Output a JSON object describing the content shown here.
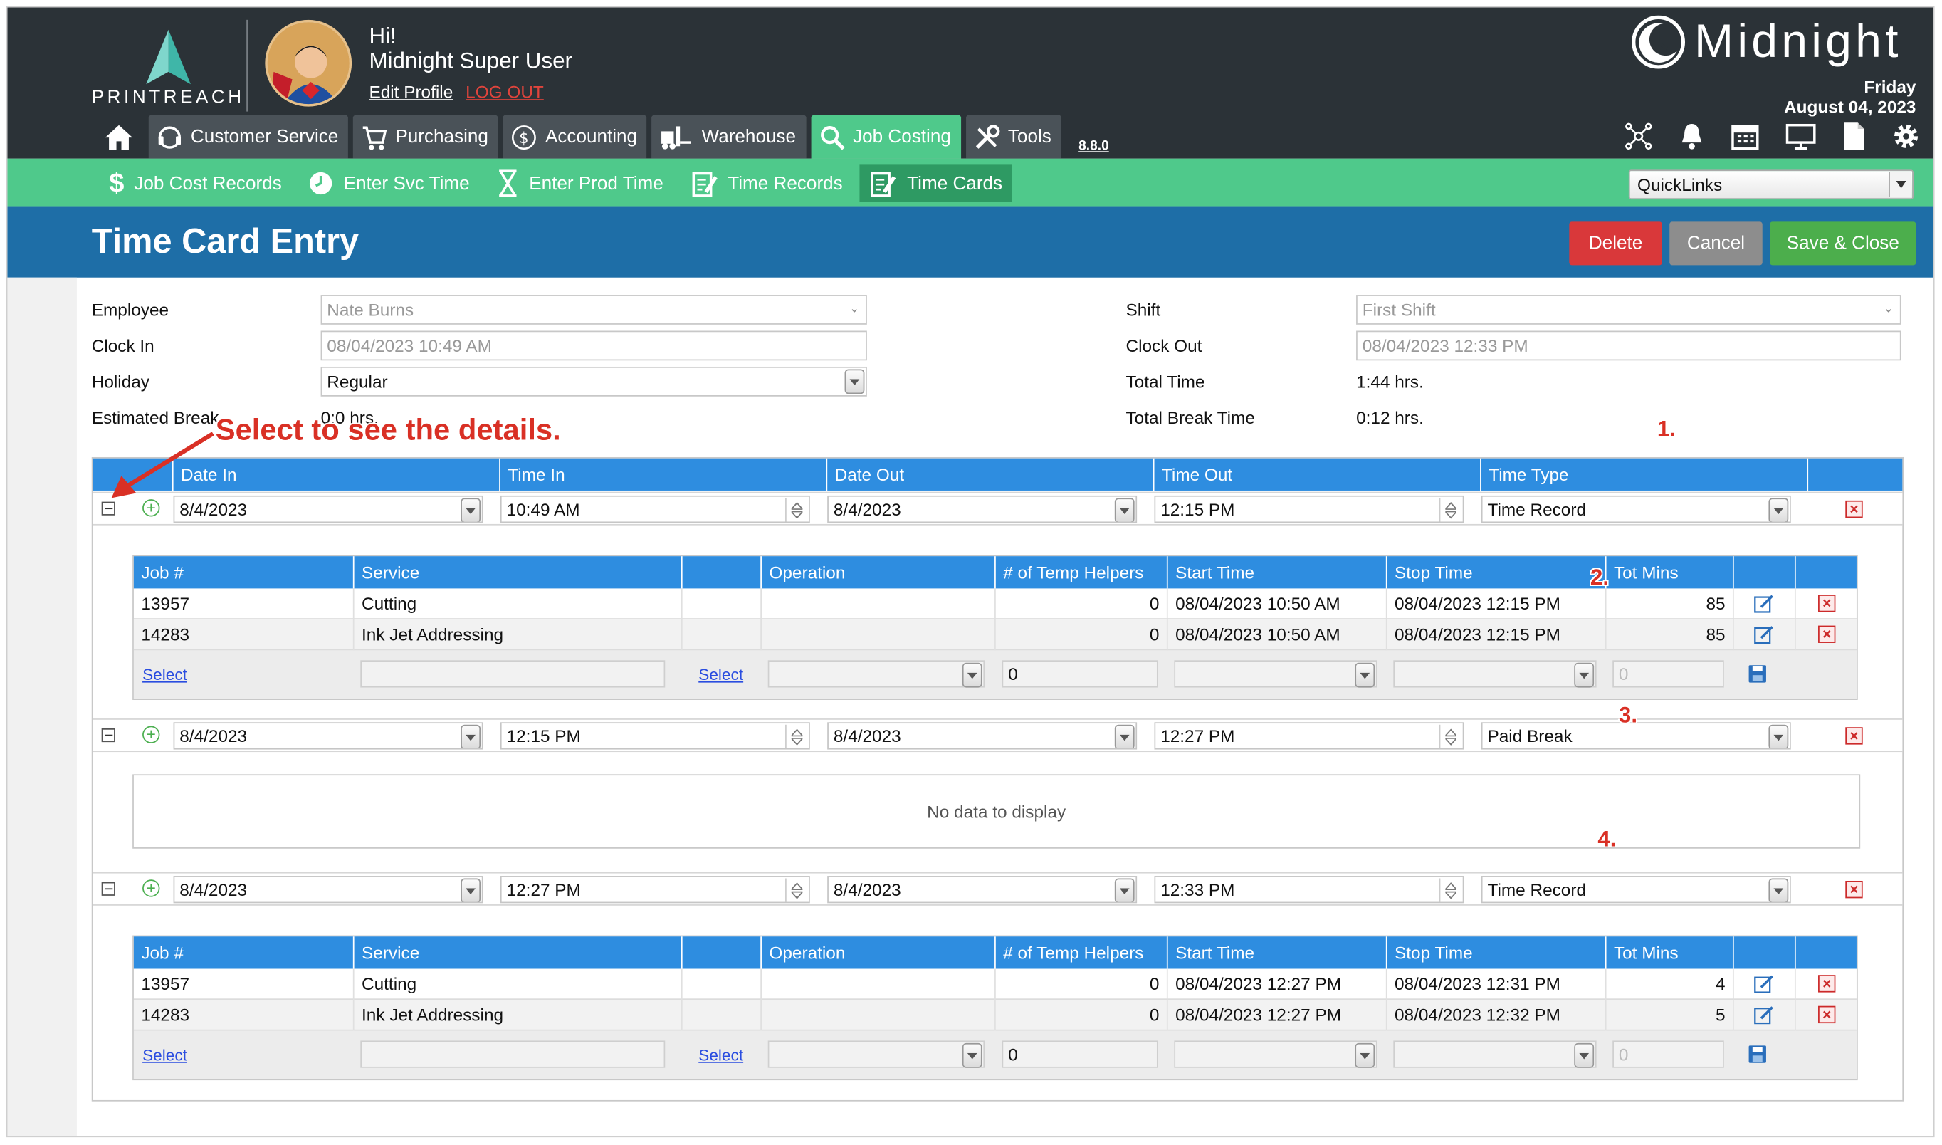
{
  "brand": {
    "logo_text": "PRINTREACH",
    "product": "Midnight",
    "day": "Friday",
    "date": "August 04, 2023"
  },
  "user": {
    "greeting": "Hi!",
    "name": "Midnight Super User",
    "edit_profile": "Edit Profile",
    "logout": "LOG OUT"
  },
  "nav": {
    "tabs": [
      {
        "label": "Customer Service",
        "icon": "headset-icon"
      },
      {
        "label": "Purchasing",
        "icon": "cart-icon"
      },
      {
        "label": "Accounting",
        "icon": "dollar-circle-icon"
      },
      {
        "label": "Warehouse",
        "icon": "forklift-icon"
      },
      {
        "label": "Job Costing",
        "icon": "magnifier-icon",
        "active": true
      },
      {
        "label": "Tools",
        "icon": "tools-icon"
      }
    ],
    "version": "8.8.0",
    "right_icons": [
      "network-icon",
      "bell-icon",
      "calendar-icon",
      "monitor-icon",
      "document-icon",
      "gear-icon"
    ]
  },
  "subnav": {
    "tabs": [
      {
        "label": "Job Cost Records",
        "icon": "dollar-icon"
      },
      {
        "label": "Enter Svc Time",
        "icon": "clock-icon"
      },
      {
        "label": "Enter Prod Time",
        "icon": "hourglass-icon"
      },
      {
        "label": "Time Records",
        "icon": "clipboard-edit-icon"
      },
      {
        "label": "Time Cards",
        "icon": "clipboard-edit-icon",
        "active": true
      }
    ],
    "quicklinks": "QuickLinks"
  },
  "page": {
    "title": "Time Card Entry",
    "buttons": {
      "delete": "Delete",
      "cancel": "Cancel",
      "save": "Save & Close"
    }
  },
  "colors": {
    "delete": "#d9383a",
    "cancel": "#8d8d8d",
    "save": "#4cae4c",
    "header": "#1e6ea7",
    "green": "#4fc98b",
    "table_header": "#2e8de0"
  },
  "form": {
    "employee_label": "Employee",
    "employee": "Nate Burns",
    "clockin_label": "Clock In",
    "clockin": "08/04/2023 10:49 AM",
    "holiday_label": "Holiday",
    "holiday": "Regular",
    "break_label": "Estimated Break",
    "break": "0:0 hrs.",
    "shift_label": "Shift",
    "shift": "First Shift",
    "clockout_label": "Clock Out",
    "clockout": "08/04/2023 12:33 PM",
    "total_label": "Total Time",
    "total": "1:44 hrs.",
    "totalbreak_label": "Total Break Time",
    "totalbreak": "0:12 hrs."
  },
  "table": {
    "headers": [
      "Date In",
      "Time In",
      "Date Out",
      "Time Out",
      "Time Type"
    ],
    "sub_headers": [
      "Job #",
      "Service",
      "Operation",
      "# of Temp Helpers",
      "Start Time",
      "Stop Time",
      "Tot Mins"
    ],
    "select": "Select",
    "no_data": "No data to display",
    "edit_row": {
      "helpers": "0",
      "mins": "0"
    },
    "records": [
      {
        "date_in": "8/4/2023",
        "time_in": "10:49 AM",
        "date_out": "8/4/2023",
        "time_out": "12:15 PM",
        "type": "Time Record",
        "jobs": [
          {
            "job": "13957",
            "service": "Cutting",
            "operation": "",
            "helpers": "0",
            "start": "08/04/2023 10:50 AM",
            "stop": "08/04/2023 12:15 PM",
            "mins": "85"
          },
          {
            "job": "14283",
            "service": "Ink Jet Addressing",
            "operation": "",
            "helpers": "0",
            "start": "08/04/2023 10:50 AM",
            "stop": "08/04/2023 12:15 PM",
            "mins": "85"
          }
        ]
      },
      {
        "date_in": "8/4/2023",
        "time_in": "12:15 PM",
        "date_out": "8/4/2023",
        "time_out": "12:27 PM",
        "type": "Paid Break",
        "jobs": []
      },
      {
        "date_in": "8/4/2023",
        "time_in": "12:27 PM",
        "date_out": "8/4/2023",
        "time_out": "12:33 PM",
        "type": "Time Record",
        "jobs": [
          {
            "job": "13957",
            "service": "Cutting",
            "operation": "",
            "helpers": "0",
            "start": "08/04/2023 12:27 PM",
            "stop": "08/04/2023 12:31 PM",
            "mins": "4"
          },
          {
            "job": "14283",
            "service": "Ink Jet Addressing",
            "operation": "",
            "helpers": "0",
            "start": "08/04/2023 12:27 PM",
            "stop": "08/04/2023 12:32 PM",
            "mins": "5"
          }
        ]
      }
    ]
  },
  "annotations": {
    "hint": "Select to see the details.",
    "n1": "1.",
    "n2": "2.",
    "n3": "3.",
    "n4": "4."
  }
}
